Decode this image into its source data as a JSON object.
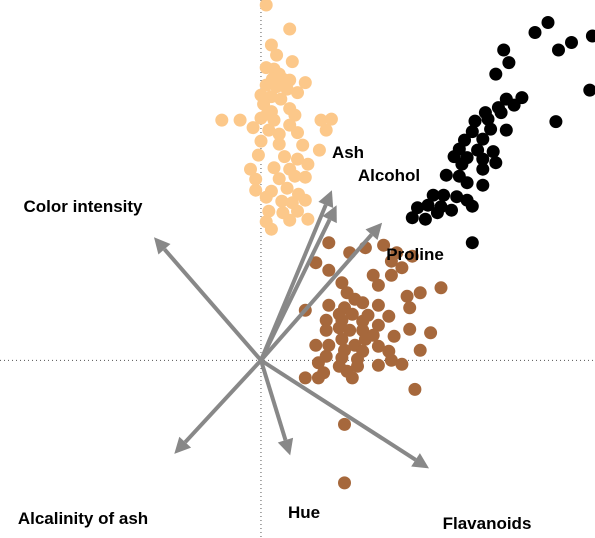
{
  "chart_data": {
    "type": "scatter",
    "title": "",
    "xlabel": "",
    "ylabel": "",
    "xlim": [
      -5,
      6.4
    ],
    "ylim": [
      -3.55,
      7.2
    ],
    "grid": false,
    "legend": "none",
    "origin": [
      0,
      0
    ],
    "series": [
      {
        "color": "#fcc88a",
        "points": [
          [
            0.1,
            7.1
          ],
          [
            0.55,
            6.62
          ],
          [
            0.2,
            6.3
          ],
          [
            0.3,
            6.1
          ],
          [
            0.6,
            5.97
          ],
          [
            0.1,
            5.85
          ],
          [
            0.25,
            5.82
          ],
          [
            0.35,
            5.72
          ],
          [
            0.22,
            5.62
          ],
          [
            0.42,
            5.62
          ],
          [
            0.55,
            5.6
          ],
          [
            0.85,
            5.55
          ],
          [
            0.1,
            5.5
          ],
          [
            0.3,
            5.47
          ],
          [
            0.5,
            5.42
          ],
          [
            0.7,
            5.35
          ],
          [
            0.0,
            5.3
          ],
          [
            0.2,
            5.27
          ],
          [
            0.38,
            5.22
          ],
          [
            0.05,
            5.12
          ],
          [
            0.55,
            5.03
          ],
          [
            0.2,
            4.97
          ],
          [
            0.12,
            4.92
          ],
          [
            0.0,
            4.84
          ],
          [
            -0.75,
            4.8
          ],
          [
            -0.4,
            4.8
          ],
          [
            0.25,
            4.8
          ],
          [
            0.65,
            4.9
          ],
          [
            1.15,
            4.8
          ],
          [
            1.35,
            4.82
          ],
          [
            0.55,
            4.7
          ],
          [
            -0.15,
            4.65
          ],
          [
            0.15,
            4.6
          ],
          [
            0.35,
            4.52
          ],
          [
            0.7,
            4.55
          ],
          [
            1.25,
            4.6
          ],
          [
            0.0,
            4.38
          ],
          [
            0.35,
            4.32
          ],
          [
            0.8,
            4.3
          ],
          [
            1.12,
            4.2
          ],
          [
            -0.05,
            4.1
          ],
          [
            0.45,
            4.07
          ],
          [
            0.7,
            4.02
          ],
          [
            -0.2,
            3.82
          ],
          [
            0.25,
            3.85
          ],
          [
            0.55,
            3.82
          ],
          [
            0.9,
            3.92
          ],
          [
            -0.1,
            3.62
          ],
          [
            0.35,
            3.63
          ],
          [
            0.65,
            3.68
          ],
          [
            0.85,
            3.66
          ],
          [
            -0.1,
            3.4
          ],
          [
            0.2,
            3.38
          ],
          [
            0.5,
            3.44
          ],
          [
            0.72,
            3.32
          ],
          [
            0.1,
            3.26
          ],
          [
            0.4,
            3.18
          ],
          [
            0.6,
            3.15
          ],
          [
            0.85,
            3.2
          ],
          [
            0.15,
            2.98
          ],
          [
            0.42,
            2.95
          ],
          [
            0.7,
            2.98
          ],
          [
            0.9,
            2.82
          ],
          [
            0.1,
            2.77
          ],
          [
            0.55,
            2.8
          ],
          [
            0.2,
            2.62
          ]
        ]
      },
      {
        "color": "#000000",
        "points": [
          [
            5.5,
            6.75
          ],
          [
            5.25,
            6.55
          ],
          [
            6.35,
            6.48
          ],
          [
            5.95,
            6.35
          ],
          [
            4.65,
            6.2
          ],
          [
            5.7,
            6.2
          ],
          [
            4.75,
            5.95
          ],
          [
            4.5,
            5.72
          ],
          [
            6.3,
            5.4
          ],
          [
            5.0,
            5.25
          ],
          [
            4.7,
            5.22
          ],
          [
            4.85,
            5.1
          ],
          [
            4.55,
            5.05
          ],
          [
            4.3,
            4.95
          ],
          [
            4.6,
            4.95
          ],
          [
            4.35,
            4.82
          ],
          [
            4.1,
            4.78
          ],
          [
            5.65,
            4.77
          ],
          [
            4.05,
            4.57
          ],
          [
            4.4,
            4.62
          ],
          [
            4.7,
            4.6
          ],
          [
            3.9,
            4.4
          ],
          [
            4.25,
            4.42
          ],
          [
            3.8,
            4.22
          ],
          [
            4.15,
            4.2
          ],
          [
            4.45,
            4.17
          ],
          [
            3.7,
            4.07
          ],
          [
            3.95,
            4.05
          ],
          [
            4.25,
            4.02
          ],
          [
            4.5,
            3.95
          ],
          [
            3.85,
            3.92
          ],
          [
            3.55,
            3.7
          ],
          [
            4.25,
            3.82
          ],
          [
            3.8,
            3.68
          ],
          [
            3.95,
            3.55
          ],
          [
            4.25,
            3.5
          ],
          [
            3.3,
            3.3
          ],
          [
            3.5,
            3.3
          ],
          [
            3.75,
            3.27
          ],
          [
            3.95,
            3.2
          ],
          [
            3.65,
            3.0
          ],
          [
            3.2,
            3.1
          ],
          [
            4.05,
            3.08
          ],
          [
            3.0,
            3.05
          ],
          [
            3.45,
            3.07
          ],
          [
            2.9,
            2.85
          ],
          [
            3.38,
            2.95
          ],
          [
            3.15,
            2.82
          ],
          [
            4.05,
            2.35
          ]
        ]
      },
      {
        "color": "#a6683c",
        "points": [
          [
            1.3,
            2.35
          ],
          [
            1.7,
            2.15
          ],
          [
            2.0,
            2.25
          ],
          [
            2.35,
            2.3
          ],
          [
            2.6,
            2.15
          ],
          [
            2.9,
            2.08
          ],
          [
            2.5,
            1.98
          ],
          [
            1.05,
            1.95
          ],
          [
            2.7,
            1.85
          ],
          [
            1.3,
            1.8
          ],
          [
            2.15,
            1.7
          ],
          [
            2.5,
            1.7
          ],
          [
            1.55,
            1.55
          ],
          [
            2.25,
            1.5
          ],
          [
            3.45,
            1.45
          ],
          [
            1.65,
            1.35
          ],
          [
            3.05,
            1.35
          ],
          [
            2.8,
            1.28
          ],
          [
            1.8,
            1.22
          ],
          [
            1.3,
            1.1
          ],
          [
            1.6,
            1.05
          ],
          [
            1.95,
            1.15
          ],
          [
            2.25,
            1.1
          ],
          [
            0.85,
            1.0
          ],
          [
            2.85,
            1.05
          ],
          [
            1.5,
            0.92
          ],
          [
            1.75,
            0.92
          ],
          [
            2.05,
            0.9
          ],
          [
            2.45,
            0.88
          ],
          [
            1.25,
            0.8
          ],
          [
            1.55,
            0.8
          ],
          [
            1.95,
            0.78
          ],
          [
            2.25,
            0.7
          ],
          [
            2.85,
            0.62
          ],
          [
            1.25,
            0.6
          ],
          [
            1.5,
            0.65
          ],
          [
            1.7,
            0.6
          ],
          [
            1.95,
            0.6
          ],
          [
            3.25,
            0.55
          ],
          [
            2.15,
            0.5
          ],
          [
            2.55,
            0.48
          ],
          [
            1.55,
            0.42
          ],
          [
            2.0,
            0.42
          ],
          [
            1.05,
            0.3
          ],
          [
            1.3,
            0.3
          ],
          [
            1.8,
            0.3
          ],
          [
            2.25,
            0.28
          ],
          [
            3.05,
            0.2
          ],
          [
            1.6,
            0.2
          ],
          [
            1.95,
            0.18
          ],
          [
            2.45,
            0.18
          ],
          [
            1.25,
            0.08
          ],
          [
            1.55,
            0.05
          ],
          [
            2.5,
            0.0
          ],
          [
            1.85,
            0.02
          ],
          [
            1.1,
            -0.05
          ],
          [
            1.5,
            -0.12
          ],
          [
            1.85,
            -0.12
          ],
          [
            2.25,
            -0.1
          ],
          [
            2.7,
            -0.08
          ],
          [
            1.2,
            -0.25
          ],
          [
            1.65,
            -0.22
          ],
          [
            1.1,
            -0.35
          ],
          [
            1.75,
            -0.35
          ],
          [
            0.85,
            -0.35
          ],
          [
            2.95,
            -0.58
          ],
          [
            1.6,
            -1.28
          ],
          [
            1.6,
            -2.45
          ]
        ]
      }
    ],
    "vectors": [
      {
        "label": "Ash",
        "x": 1.36,
        "y": 3.4
      },
      {
        "label": "Alcohol",
        "x": 1.45,
        "y": 3.1
      },
      {
        "label": "Proline",
        "x": 2.32,
        "y": 2.75
      },
      {
        "label": "Color intensity",
        "x": -2.05,
        "y": 2.46
      },
      {
        "label": "Alcalinity of ash",
        "x": -1.66,
        "y": -1.87
      },
      {
        "label": "Hue",
        "x": 0.56,
        "y": -1.9
      },
      {
        "label": "Flavanoids",
        "x": 3.22,
        "y": -2.16
      }
    ]
  }
}
